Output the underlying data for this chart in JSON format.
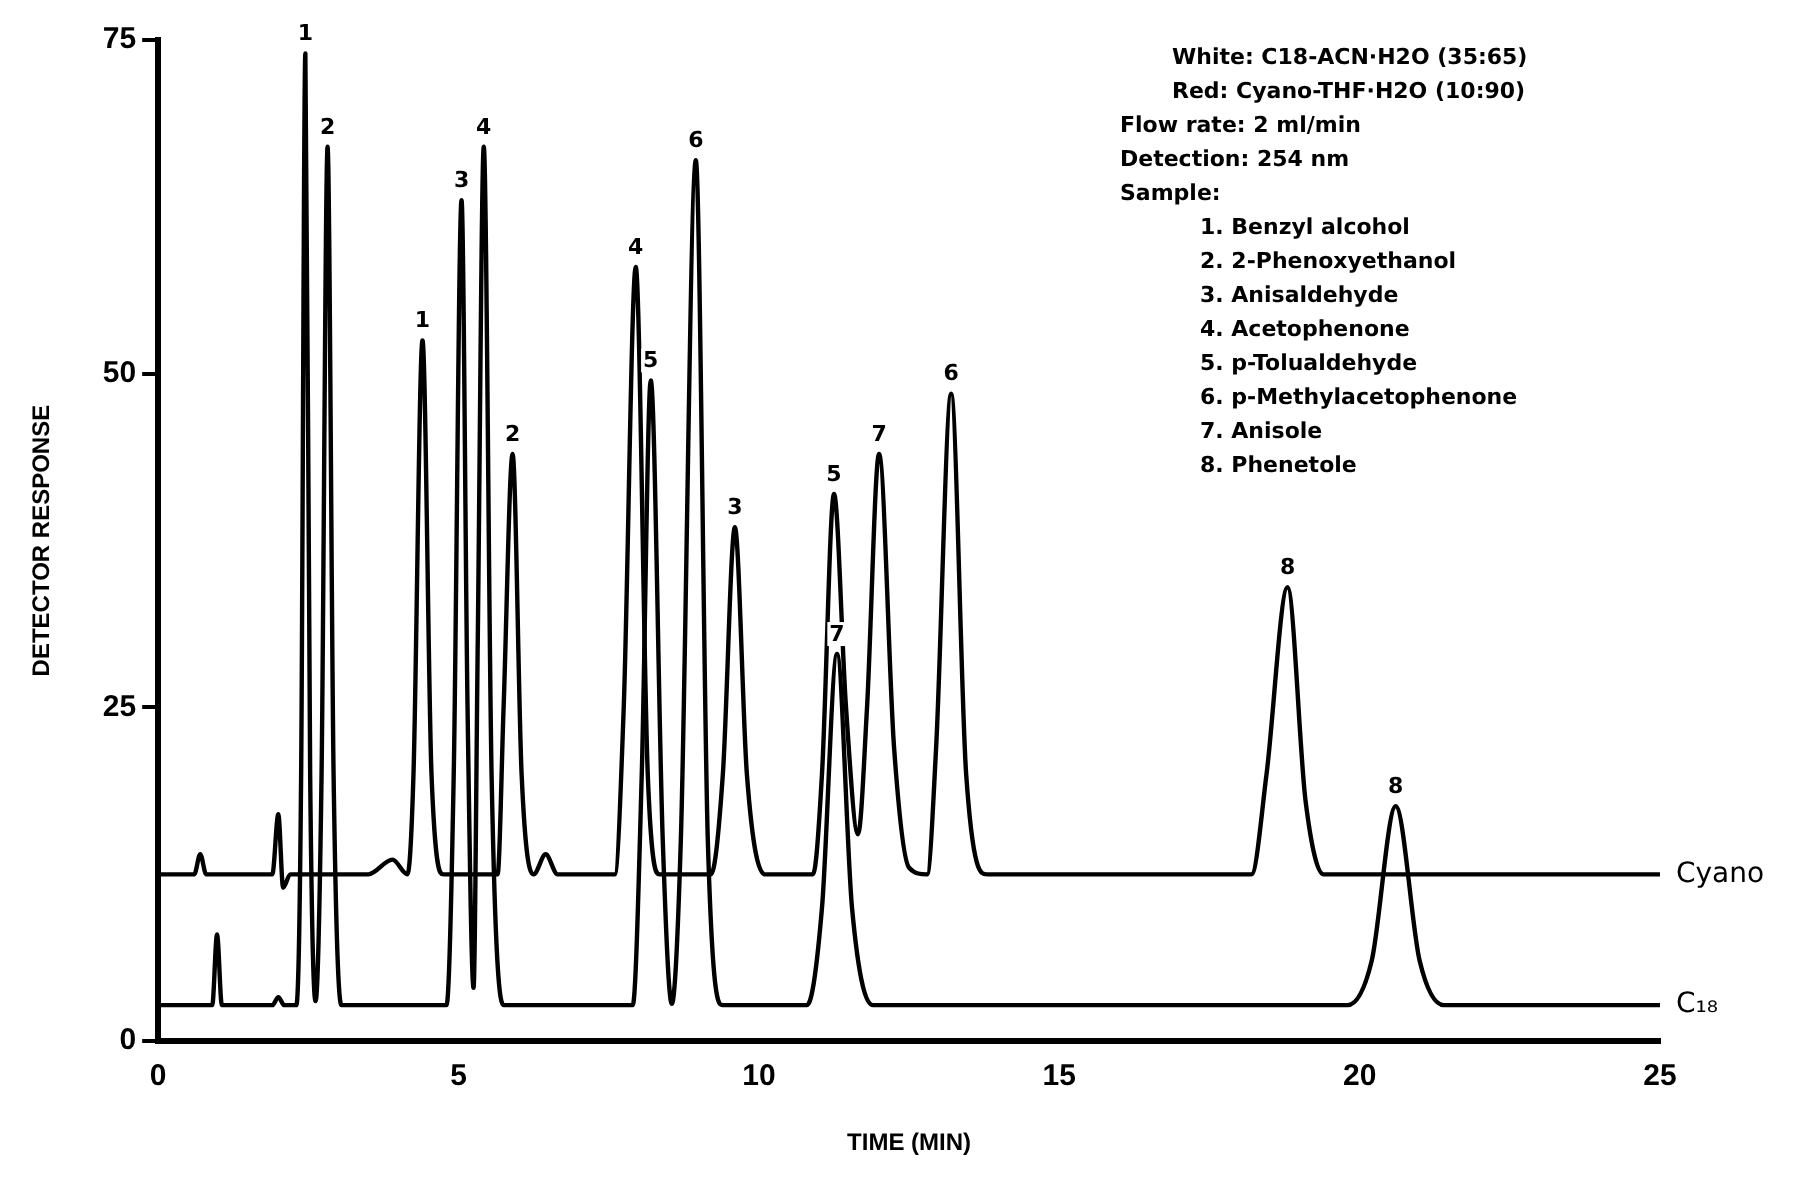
{
  "chart_data": {
    "type": "line",
    "xlabel": "TIME (MIN)",
    "ylabel": "DETECTOR RESPONSE",
    "xlim": [
      0,
      25
    ],
    "xticks": [
      0,
      5,
      10,
      15,
      20,
      25
    ],
    "ylim": [
      0,
      75
    ],
    "yticks": [
      0,
      25,
      50,
      75
    ],
    "grid": false,
    "legend": false,
    "marker": "none",
    "line_style": "solid",
    "series": [
      {
        "name": "Cyano",
        "color": "#000000",
        "x": [
          0,
          0.6,
          0.7,
          0.8,
          1.9,
          2.0,
          2.08,
          2.2,
          3.5,
          3.9,
          4.15,
          4.25,
          4.4,
          4.55,
          4.75,
          5.65,
          5.75,
          5.9,
          6.05,
          6.25,
          6.45,
          6.65,
          7.6,
          7.75,
          7.95,
          8.15,
          8.35,
          9.2,
          9.4,
          9.6,
          9.8,
          10.1,
          10.9,
          11.05,
          11.25,
          11.45,
          11.65,
          11.8,
          12.0,
          12.25,
          12.5,
          12.8,
          12.95,
          13.2,
          13.45,
          13.8,
          18.2,
          18.45,
          18.8,
          19.1,
          19.4,
          25
        ],
        "values": [
          12.5,
          12.5,
          14,
          12.5,
          12.5,
          17,
          11.5,
          12.5,
          12.5,
          13.6,
          12.5,
          20,
          52.5,
          20,
          12.5,
          12.5,
          25,
          44,
          20,
          12.5,
          14,
          12.5,
          12.5,
          25,
          58,
          20,
          12.5,
          12.5,
          20,
          38.5,
          20,
          12.5,
          12.5,
          20,
          41,
          25,
          15.5,
          25,
          44,
          22,
          13,
          12.5,
          22,
          48.5,
          20,
          12.5,
          12.5,
          20,
          34,
          18,
          12.5,
          12.5
        ]
      },
      {
        "name": "C₁₈",
        "color": "#000000",
        "x": [
          0,
          0.9,
          0.98,
          1.06,
          1.9,
          2.0,
          2.1,
          2.3,
          2.38,
          2.45,
          2.53,
          2.62,
          2.72,
          2.82,
          2.92,
          3.05,
          4.8,
          4.92,
          5.05,
          5.15,
          5.25,
          5.32,
          5.42,
          5.55,
          5.75,
          7.9,
          8.05,
          8.2,
          8.4,
          8.55,
          8.7,
          8.95,
          9.15,
          9.4,
          10.8,
          11.05,
          11.3,
          11.55,
          11.9,
          19.8,
          20.2,
          20.6,
          21.0,
          21.4,
          25
        ],
        "values": [
          2.7,
          2.7,
          8,
          2.7,
          2.7,
          3.3,
          2.7,
          2.7,
          20,
          74,
          20,
          3,
          20,
          67,
          20,
          2.7,
          2.7,
          20,
          63,
          25,
          4,
          30,
          67,
          20,
          2.7,
          2.7,
          20,
          49.5,
          15,
          2.8,
          15,
          66,
          15,
          2.7,
          2.7,
          10,
          29,
          10,
          2.7,
          2.7,
          6,
          17.6,
          6,
          2.7,
          2.7
        ]
      }
    ],
    "annotations": [
      {
        "text": "1",
        "x": 2.45,
        "y": 74
      },
      {
        "text": "2",
        "x": 2.82,
        "y": 67
      },
      {
        "text": "3",
        "x": 5.05,
        "y": 63
      },
      {
        "text": "4",
        "x": 5.42,
        "y": 67
      },
      {
        "text": "5",
        "x": 8.2,
        "y": 49.5
      },
      {
        "text": "6",
        "x": 8.95,
        "y": 66
      },
      {
        "text": "7",
        "x": 11.3,
        "y": 29
      },
      {
        "text": "8",
        "x": 20.6,
        "y": 17.6
      },
      {
        "text": "1",
        "x": 4.4,
        "y": 52.5
      },
      {
        "text": "2",
        "x": 5.9,
        "y": 44
      },
      {
        "text": "4",
        "x": 7.95,
        "y": 58
      },
      {
        "text": "3",
        "x": 9.6,
        "y": 38.5
      },
      {
        "text": "5",
        "x": 11.25,
        "y": 41
      },
      {
        "text": "7",
        "x": 12.0,
        "y": 44
      },
      {
        "text": "6",
        "x": 13.2,
        "y": 48.5
      },
      {
        "text": "8",
        "x": 18.8,
        "y": 34
      },
      "White: C18-ACN·H2O (35:65)",
      "Red: Cyano-THF·H2O (10:90)",
      "Flow rate: 2 ml/min",
      "Detection: 254 nm",
      "Sample:",
      "1. Benzyl alcohol",
      "2. 2-Phenoxyethanol",
      "3. Anisaldehyde",
      "4. Acetophenone",
      "5. p-Tolualdehyde",
      "6. p-Methylacetophenone",
      "7. Anisole",
      "8. Phenetole"
    ]
  }
}
